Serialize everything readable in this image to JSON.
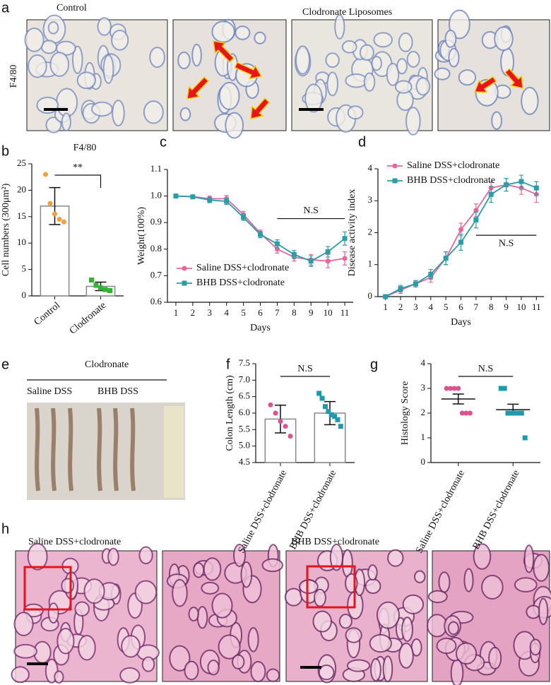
{
  "panel_labels": [
    "a",
    "b",
    "c",
    "d",
    "e",
    "f",
    "g",
    "h"
  ],
  "panel_a": {
    "labels": [
      "Control",
      "Clodronate Liposomes"
    ],
    "row_label": "F4/80"
  },
  "panel_e": {
    "title": "Clodronate",
    "groups": [
      "Saline DSS",
      "BHB DSS"
    ]
  },
  "panel_h": {
    "groups": [
      "Saline DSS+clodronate",
      "BHB DSS+clodronate"
    ]
  },
  "chart_data": [
    {
      "type": "bar",
      "title": "F4/80",
      "ylabel": "Cell numbers (300μm²)",
      "categories": [
        "Control",
        "Clodronate"
      ],
      "values": [
        17,
        1.8
      ],
      "errors": [
        3.5,
        0.8
      ],
      "points": [
        [
          23,
          17.5,
          15.5,
          14.5,
          14
        ],
        [
          3,
          2,
          1.5,
          1.2,
          1
        ]
      ],
      "colors": [
        "#f3a03c",
        "#33b233"
      ],
      "ylim": [
        0,
        25
      ],
      "yticks": [
        0,
        5,
        10,
        15,
        20,
        25
      ],
      "annotation": "**"
    },
    {
      "type": "line",
      "xlabel": "Days",
      "ylabel": "Weight(100%)",
      "x": [
        1,
        2,
        3,
        4,
        5,
        6,
        7,
        8,
        9,
        10,
        11
      ],
      "xlim": [
        0.5,
        11.5
      ],
      "xticks": [
        1,
        2,
        3,
        4,
        5,
        6,
        7,
        8,
        9,
        10,
        11
      ],
      "ylim": [
        0.6,
        1.1
      ],
      "yticks": [
        0.6,
        0.7,
        0.8,
        0.9,
        {
          "value": 1,
          "label": "1.0"
        },
        1.1
      ],
      "legend": "lower left",
      "annotation": "N.S",
      "series": [
        {
          "name": "Saline DSS+clodronate",
          "color": "#e8679a",
          "values": [
            1,
            0.998,
            0.99,
            0.99,
            0.93,
            0.86,
            0.8,
            0.77,
            0.76,
            0.755,
            0.765
          ],
          "errors": [
            0.005,
            0.006,
            0.01,
            0.012,
            0.012,
            0.012,
            0.015,
            0.015,
            0.02,
            0.025,
            0.025
          ]
        },
        {
          "name": "BHB DSS+clodronate",
          "color": "#2a9da8",
          "values": [
            1,
            0.997,
            0.985,
            0.98,
            0.92,
            0.855,
            0.82,
            0.78,
            0.755,
            0.79,
            0.84
          ],
          "errors": [
            0.005,
            0.006,
            0.01,
            0.012,
            0.012,
            0.012,
            0.015,
            0.015,
            0.02,
            0.02,
            0.025
          ]
        }
      ]
    },
    {
      "type": "line",
      "xlabel": "Days",
      "ylabel": "Disease activity index",
      "x": [
        1,
        2,
        3,
        4,
        5,
        6,
        7,
        8,
        9,
        10,
        11
      ],
      "xlim": [
        0.5,
        11.5
      ],
      "xticks": [
        1,
        2,
        3,
        4,
        5,
        6,
        7,
        8,
        9,
        10,
        11
      ],
      "ylim": [
        0,
        4
      ],
      "yticks": [
        0,
        1,
        2,
        3,
        4
      ],
      "legend": "upper left",
      "annotation": "N.S",
      "series": [
        {
          "name": "Saline DSS+clodronate",
          "color": "#e8679a",
          "values": [
            0,
            0.2,
            0.4,
            0.6,
            1.2,
            2.1,
            2.7,
            3.4,
            3.5,
            3.4,
            3.2
          ],
          "errors": [
            0,
            0.1,
            0.1,
            0.15,
            0.2,
            0.2,
            0.2,
            0.2,
            0.2,
            0.2,
            0.25
          ]
        },
        {
          "name": "BHB DSS+clodronate",
          "color": "#2a9da8",
          "values": [
            0,
            0.25,
            0.4,
            0.7,
            1.2,
            1.7,
            2.4,
            3.2,
            3.5,
            3.6,
            3.4
          ],
          "errors": [
            0,
            0.1,
            0.1,
            0.15,
            0.2,
            0.25,
            0.25,
            0.25,
            0.2,
            0.2,
            0.2
          ]
        }
      ]
    },
    {
      "type": "bar",
      "ylabel": "Colon Length (cm)",
      "categories": [
        "Saline DSS+clodronate",
        "BHB DSS+clodronate"
      ],
      "values": [
        5.82,
        6.0
      ],
      "errors": [
        0.42,
        0.35
      ],
      "points": [
        [
          6.25,
          6.0,
          5.75,
          5.6,
          5.3
        ],
        [
          6.6,
          6.45,
          6.2,
          6.05,
          5.95,
          5.9,
          5.8,
          5.6
        ]
      ],
      "colors": [
        "#e0508f",
        "#1e9aaa"
      ],
      "ylim": [
        4.5,
        7.5
      ],
      "yticks": [
        4.5,
        {
          "value": 5,
          "label": "5.0"
        },
        5.5,
        {
          "value": 6,
          "label": "6.0"
        },
        6.5,
        {
          "value": 7,
          "label": "7.0"
        },
        7.5
      ],
      "annotation": "N.S"
    },
    {
      "type": "dot",
      "ylabel": "Histology Score",
      "categories": [
        "Saline DSS+clodronate",
        "BHB DSS+clodronate"
      ],
      "values": [
        2.57,
        2.14
      ],
      "errors": [
        0.2,
        0.22
      ],
      "points": [
        [
          3,
          3,
          3,
          3,
          2,
          2,
          2
        ],
        [
          3,
          3,
          2,
          2,
          2,
          2,
          2,
          1
        ]
      ],
      "colors": [
        "#e0508f",
        "#1e9aaa"
      ],
      "ylim": [
        0,
        4
      ],
      "yticks": [
        0,
        1,
        2,
        3,
        4
      ],
      "annotation": "N.S"
    }
  ]
}
